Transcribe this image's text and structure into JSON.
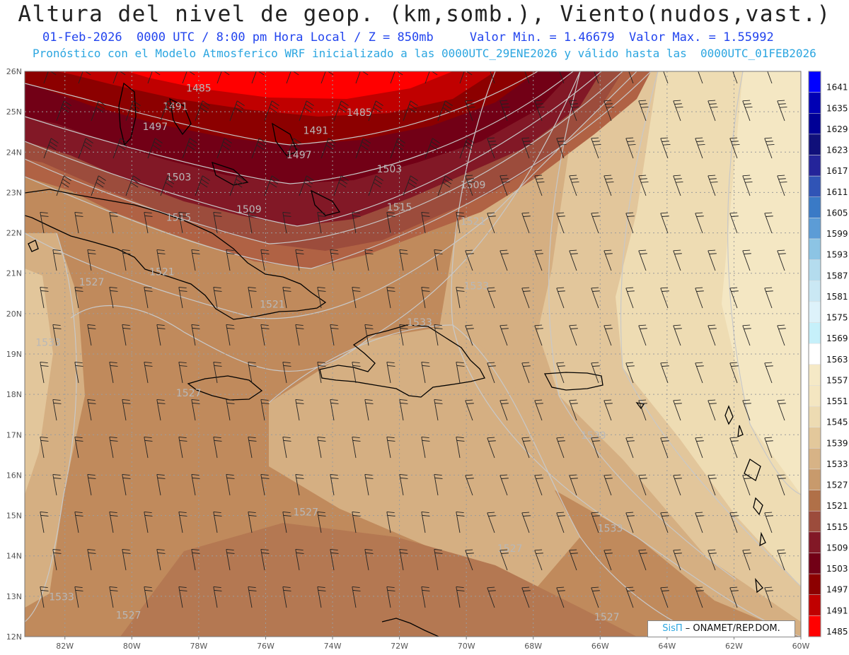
{
  "header": {
    "title": "Altura del nivel de geop. (km,somb.), Viento(nudos,vast.)",
    "subtitle": "01-Feb-2026  0000 UTC / 8:00 pm Hora Local / Z = 850mb     Valor Min. = 1.46679  Valor Max. = 1.55992",
    "description": "Pronóstico con el Modelo Atmosferico WRF inicializado a las 0000UTC_29ENE2026 y válido hasta las  0000UTC_01FEB2026"
  },
  "colors": {
    "accent_blue": "#2244ee",
    "accent_cyan": "#2ca6e0"
  },
  "map": {
    "lon_labels": [
      "82W",
      "80W",
      "78W",
      "76W",
      "74W",
      "72W",
      "70W",
      "68W",
      "66W",
      "64W",
      "62W",
      "60W"
    ],
    "lat_labels": [
      "26N",
      "25N",
      "24N",
      "23N",
      "22N",
      "21N",
      "20N",
      "19N",
      "18N",
      "17N",
      "16N",
      "15N",
      "14N",
      "13N",
      "12N"
    ],
    "lon_range": [
      -83.2,
      -60
    ],
    "lat_range": [
      12,
      26
    ],
    "contour_labels": [
      {
        "text": "1485",
        "lon": -78.0,
        "lat": 25.5
      },
      {
        "text": "1485",
        "lon": -73.2,
        "lat": 24.9
      },
      {
        "text": "1491",
        "lon": -78.7,
        "lat": 25.05
      },
      {
        "text": "1491",
        "lon": -74.5,
        "lat": 24.45
      },
      {
        "text": "1497",
        "lon": -79.3,
        "lat": 24.55
      },
      {
        "text": "1497",
        "lon": -75.0,
        "lat": 23.85
      },
      {
        "text": "1503",
        "lon": -78.6,
        "lat": 23.3
      },
      {
        "text": "1503",
        "lon": -72.3,
        "lat": 23.5
      },
      {
        "text": "1509",
        "lon": -76.5,
        "lat": 22.5
      },
      {
        "text": "1509",
        "lon": -69.8,
        "lat": 23.1
      },
      {
        "text": "1515",
        "lon": -78.6,
        "lat": 22.3
      },
      {
        "text": "1515",
        "lon": -72.0,
        "lat": 22.55
      },
      {
        "text": "1521",
        "lon": -69.8,
        "lat": 22.2
      },
      {
        "text": "1521",
        "lon": -79.1,
        "lat": 20.95
      },
      {
        "text": "1521",
        "lon": -75.8,
        "lat": 20.15
      },
      {
        "text": "1527",
        "lon": -81.2,
        "lat": 20.7
      },
      {
        "text": "1527",
        "lon": -78.3,
        "lat": 17.95
      },
      {
        "text": "1527",
        "lon": -74.8,
        "lat": 15.0
      },
      {
        "text": "1527",
        "lon": -80.1,
        "lat": 12.45
      },
      {
        "text": "1527",
        "lon": -65.8,
        "lat": 12.4
      },
      {
        "text": "1527",
        "lon": -68.7,
        "lat": 14.1
      },
      {
        "text": "1533",
        "lon": -82.5,
        "lat": 19.2
      },
      {
        "text": "1533",
        "lon": -69.7,
        "lat": 20.6
      },
      {
        "text": "1533",
        "lon": -71.4,
        "lat": 19.7
      },
      {
        "text": "1533",
        "lon": -82.1,
        "lat": 12.9
      },
      {
        "text": "1533",
        "lon": -65.7,
        "lat": 14.6
      },
      {
        "text": "1539",
        "lon": -66.2,
        "lat": 16.9
      }
    ]
  },
  "legend": {
    "levels": [
      "1641",
      "1635",
      "1629",
      "1623",
      "1617",
      "1611",
      "1605",
      "1599",
      "1593",
      "1587",
      "1581",
      "1575",
      "1569",
      "1563",
      "1557",
      "1551",
      "1545",
      "1539",
      "1533",
      "1527",
      "1521",
      "1515",
      "1509",
      "1503",
      "1497",
      "1491",
      "1485"
    ],
    "colors": [
      "#0000ff",
      "#0000b4",
      "#000096",
      "#10107a",
      "#24249a",
      "#3054b6",
      "#3a7ac6",
      "#5c9cd6",
      "#8cc4e4",
      "#b4dcee",
      "#cae8f4",
      "#ddf2fa",
      "#c6f0fa",
      "#ffffff",
      "#f5e9c6",
      "#f4e6c1",
      "#eddbb2",
      "#e3c89b",
      "#d7b386",
      "#c89a6c",
      "#b07048",
      "#9c4c3c",
      "#821826",
      "#720016",
      "#8c0000",
      "#c00000",
      "#ff0000"
    ]
  },
  "credit": {
    "brand": "SisΠ",
    "text": "– ONAMET/REP.DOM."
  }
}
